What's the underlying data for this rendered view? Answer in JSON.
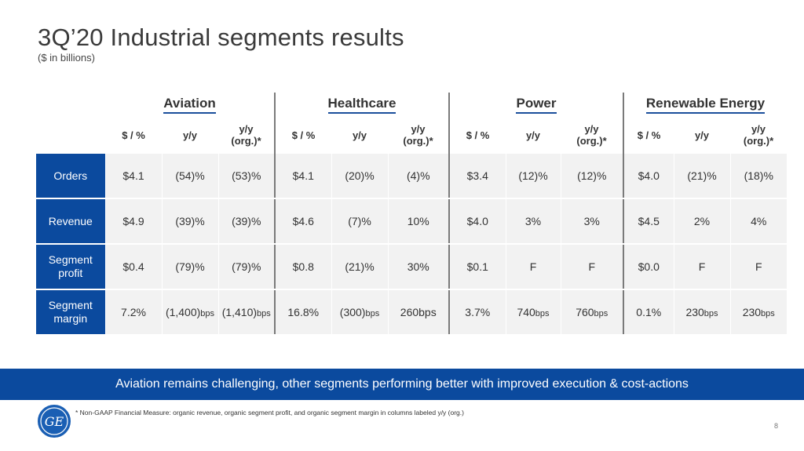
{
  "title": "3Q’20 Industrial segments results",
  "subtitle": "($ in billions)",
  "segments": [
    "Aviation",
    "Healthcare",
    "Power",
    "Renewable Energy"
  ],
  "columns": [
    "$ / %",
    "y/y",
    "y/y (org.)*"
  ],
  "rows": [
    {
      "label": "Orders",
      "cells": [
        [
          "$4.1",
          "(54)%",
          "(53)%"
        ],
        [
          "$4.1",
          "(20)%",
          "(4)%"
        ],
        [
          "$3.4",
          "(12)%",
          "(12)%"
        ],
        [
          "$4.0",
          "(21)%",
          "(18)%"
        ]
      ]
    },
    {
      "label": "Revenue",
      "cells": [
        [
          "$4.9",
          "(39)%",
          "(39)%"
        ],
        [
          "$4.6",
          "(7)%",
          "10%"
        ],
        [
          "$4.0",
          "3%",
          "3%"
        ],
        [
          "$4.5",
          "2%",
          "4%"
        ]
      ]
    },
    {
      "label": "Segment profit",
      "cells": [
        [
          "$0.4",
          "(79)%",
          "(79)%"
        ],
        [
          "$0.8",
          "(21)%",
          "30%"
        ],
        [
          "$0.1",
          "F",
          "F"
        ],
        [
          "$0.0",
          "F",
          "F"
        ]
      ]
    },
    {
      "label": "Segment margin",
      "cells": [
        [
          "7.2%",
          [
            "(1,400)",
            "bps"
          ],
          [
            "(1,410)",
            "bps"
          ]
        ],
        [
          "16.8%",
          [
            "(300)",
            "bps"
          ],
          [
            "260bps",
            ""
          ]
        ],
        [
          "3.7%",
          [
            "740",
            "bps"
          ],
          [
            "760",
            "bps"
          ]
        ],
        [
          "0.1%",
          [
            "230",
            "bps"
          ],
          [
            "230",
            "bps"
          ]
        ]
      ]
    }
  ],
  "banner": "Aviation remains challenging, other segments performing better with improved execution & cost-actions",
  "footnote": "* Non-GAAP Financial Measure: organic revenue, organic segment profit, and organic segment margin in columns labeled y/y (org.)",
  "page_number": "8",
  "logo": "GE"
}
